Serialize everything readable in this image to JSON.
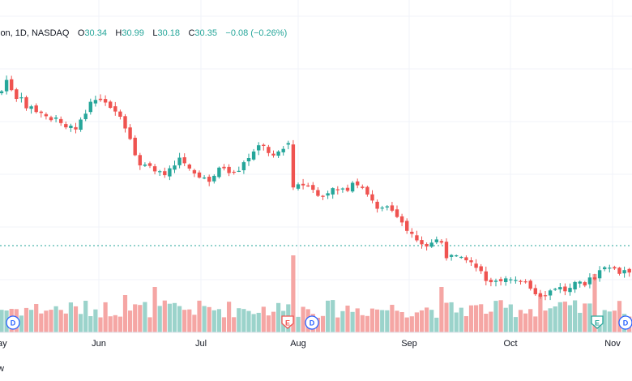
{
  "legend": {
    "symbol_fragment": "ion, 1D, NASDAQ",
    "open_label": "O",
    "open_value": "30.34",
    "high_label": "H",
    "high_value": "30.99",
    "low_label": "L",
    "low_value": "30.18",
    "close_label": "C",
    "close_value": "30.35",
    "change": "−0.08 (−0.26%)"
  },
  "bottom_left_fragment": "w",
  "colors": {
    "up": "#26a69a",
    "down": "#ef5350",
    "up_volume": "#9bd3cb",
    "down_volume": "#f5a6a4",
    "grid": "#f0f3fa",
    "current_price_line": "#26a69a",
    "text": "#131722",
    "positive_change": "#26a69a"
  },
  "chart_data": {
    "type": "candlestick",
    "interval": "1D",
    "exchange": "NASDAQ",
    "price_scale": "hidden",
    "x_axis_labels": [
      "ay",
      "Jun",
      "Jul",
      "Aug",
      "Sep",
      "Oct",
      "Nov"
    ],
    "current_bar": {
      "open": 30.34,
      "high": 30.99,
      "low": 30.18,
      "close": 30.35,
      "change": -0.08,
      "change_percent": -0.26
    },
    "series_close_relative": [
      100,
      101,
      99,
      98,
      97,
      95,
      99,
      100,
      98,
      95,
      93,
      92,
      91,
      92,
      91,
      92,
      90,
      89,
      91,
      93,
      95,
      94,
      96,
      97,
      95,
      94,
      96,
      95,
      87,
      87,
      86,
      85,
      86,
      86,
      84,
      82,
      77,
      74,
      73,
      71,
      69,
      68,
      68,
      65,
      63,
      62,
      63,
      61,
      59,
      60,
      62,
      64,
      65,
      64,
      66,
      65,
      64
    ],
    "events": [
      {
        "label": "D",
        "kind": "dividend"
      },
      {
        "label": "E",
        "kind": "earnings"
      },
      {
        "label": "D",
        "kind": "dividend"
      },
      {
        "label": "E",
        "kind": "earnings"
      },
      {
        "label": "D",
        "kind": "dividend"
      }
    ]
  }
}
